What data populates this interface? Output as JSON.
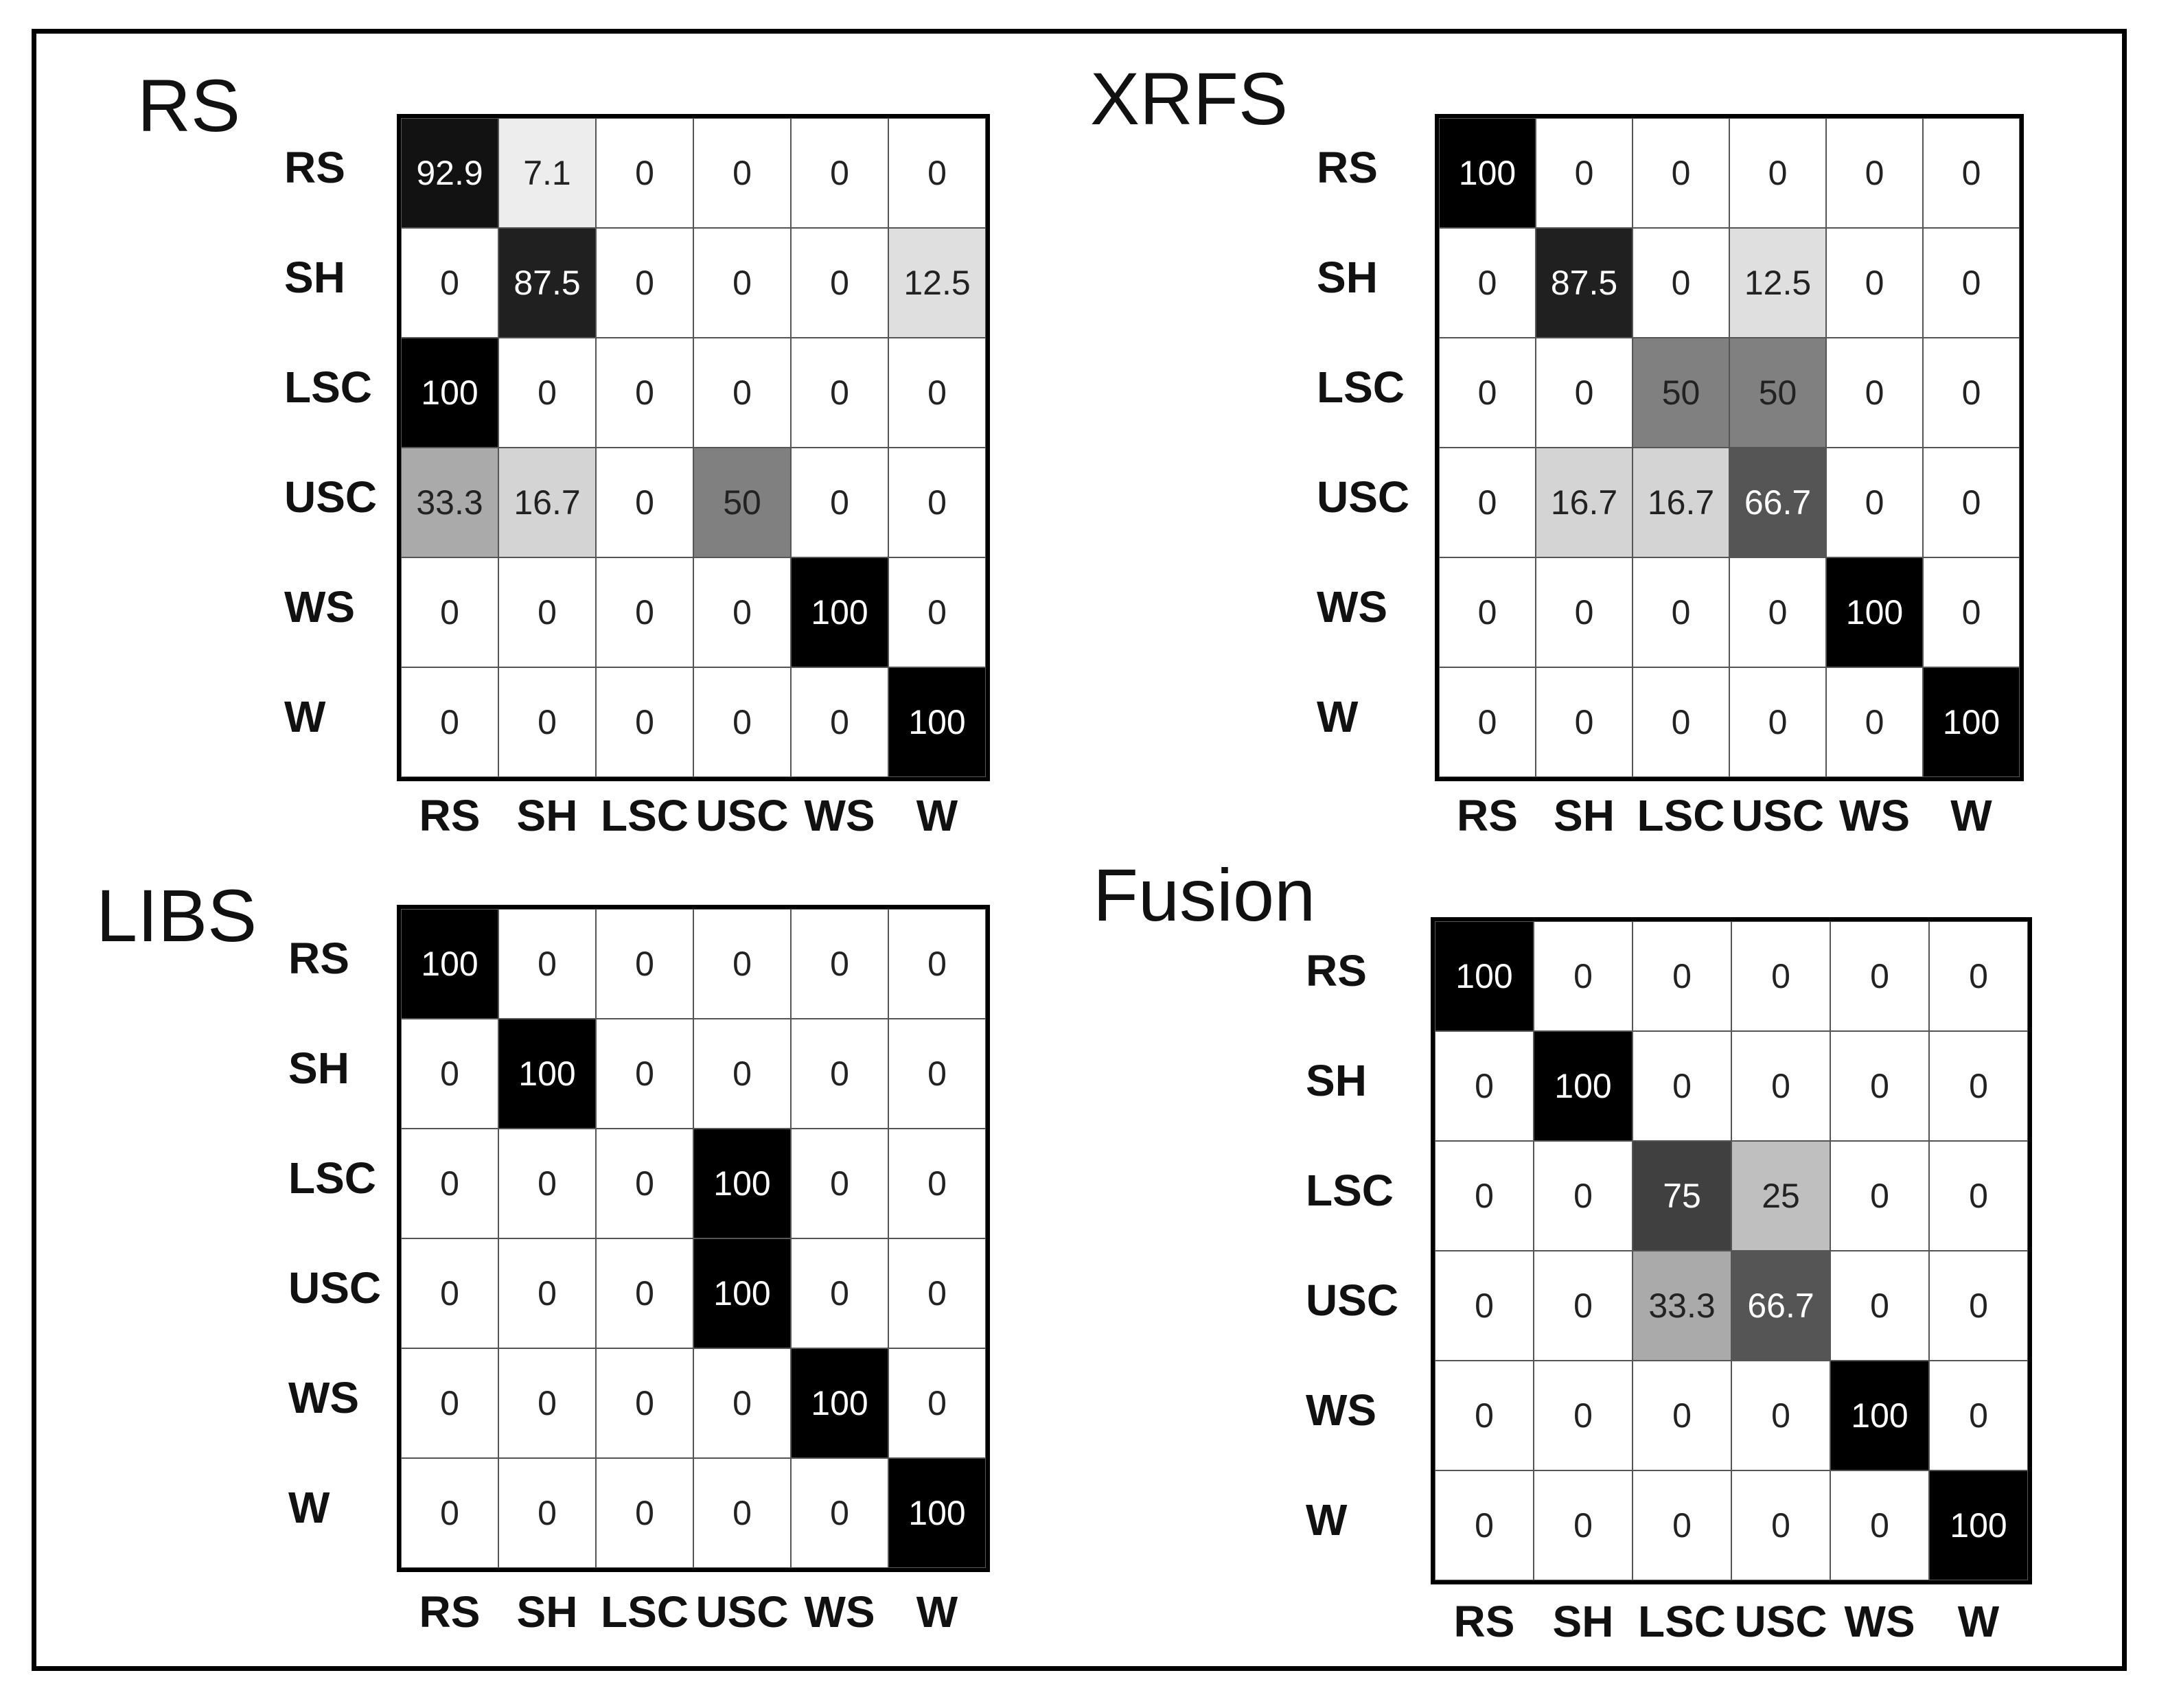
{
  "chart_data": [
    {
      "type": "heatmap",
      "title": "RS",
      "row_labels": [
        "RS",
        "SH",
        "LSC",
        "USC",
        "WS",
        "W"
      ],
      "col_labels": [
        "RS",
        "SH",
        "LSC",
        "USC",
        "WS",
        "W"
      ],
      "values": [
        [
          "92.9",
          "7.1",
          "0",
          "0",
          "0",
          "0"
        ],
        [
          "0",
          "87.5",
          "0",
          "0",
          "0",
          "12.5"
        ],
        [
          "100",
          "0",
          "0",
          "0",
          "0",
          "0"
        ],
        [
          "33.3",
          "16.7",
          "0",
          "50",
          "0",
          "0"
        ],
        [
          "0",
          "0",
          "0",
          "0",
          "100",
          "0"
        ],
        [
          "0",
          "0",
          "0",
          "0",
          "0",
          "100"
        ]
      ],
      "color_scale": {
        "low": "#ffffff",
        "high": "#000000",
        "range": [
          0,
          100
        ]
      }
    },
    {
      "type": "heatmap",
      "title": "XRFS",
      "row_labels": [
        "RS",
        "SH",
        "LSC",
        "USC",
        "WS",
        "W"
      ],
      "col_labels": [
        "RS",
        "SH",
        "LSC",
        "USC",
        "WS",
        "W"
      ],
      "values": [
        [
          "100",
          "0",
          "0",
          "0",
          "0",
          "0"
        ],
        [
          "0",
          "87.5",
          "0",
          "12.5",
          "0",
          "0"
        ],
        [
          "0",
          "0",
          "50",
          "50",
          "0",
          "0"
        ],
        [
          "0",
          "16.7",
          "16.7",
          "66.7",
          "0",
          "0"
        ],
        [
          "0",
          "0",
          "0",
          "0",
          "100",
          "0"
        ],
        [
          "0",
          "0",
          "0",
          "0",
          "0",
          "100"
        ]
      ],
      "color_scale": {
        "low": "#ffffff",
        "high": "#000000",
        "range": [
          0,
          100
        ]
      }
    },
    {
      "type": "heatmap",
      "title": "LIBS",
      "row_labels": [
        "RS",
        "SH",
        "LSC",
        "USC",
        "WS",
        "W"
      ],
      "col_labels": [
        "RS",
        "SH",
        "LSC",
        "USC",
        "WS",
        "W"
      ],
      "values": [
        [
          "100",
          "0",
          "0",
          "0",
          "0",
          "0"
        ],
        [
          "0",
          "100",
          "0",
          "0",
          "0",
          "0"
        ],
        [
          "0",
          "0",
          "0",
          "100",
          "0",
          "0"
        ],
        [
          "0",
          "0",
          "0",
          "100",
          "0",
          "0"
        ],
        [
          "0",
          "0",
          "0",
          "0",
          "100",
          "0"
        ],
        [
          "0",
          "0",
          "0",
          "0",
          "0",
          "100"
        ]
      ],
      "color_scale": {
        "low": "#ffffff",
        "high": "#000000",
        "range": [
          0,
          100
        ]
      }
    },
    {
      "type": "heatmap",
      "title": "Fusion",
      "row_labels": [
        "RS",
        "SH",
        "LSC",
        "USC",
        "WS",
        "W"
      ],
      "col_labels": [
        "RS",
        "SH",
        "LSC",
        "USC",
        "WS",
        "W"
      ],
      "values": [
        [
          "100",
          "0",
          "0",
          "0",
          "0",
          "0"
        ],
        [
          "0",
          "100",
          "0",
          "0",
          "0",
          "0"
        ],
        [
          "0",
          "0",
          "75",
          "25",
          "0",
          "0"
        ],
        [
          "0",
          "0",
          "33.3",
          "66.7",
          "0",
          "0"
        ],
        [
          "0",
          "0",
          "0",
          "0",
          "100",
          "0"
        ],
        [
          "0",
          "0",
          "0",
          "0",
          "0",
          "100"
        ]
      ],
      "color_scale": {
        "low": "#ffffff",
        "high": "#000000",
        "range": [
          0,
          100
        ]
      }
    }
  ]
}
